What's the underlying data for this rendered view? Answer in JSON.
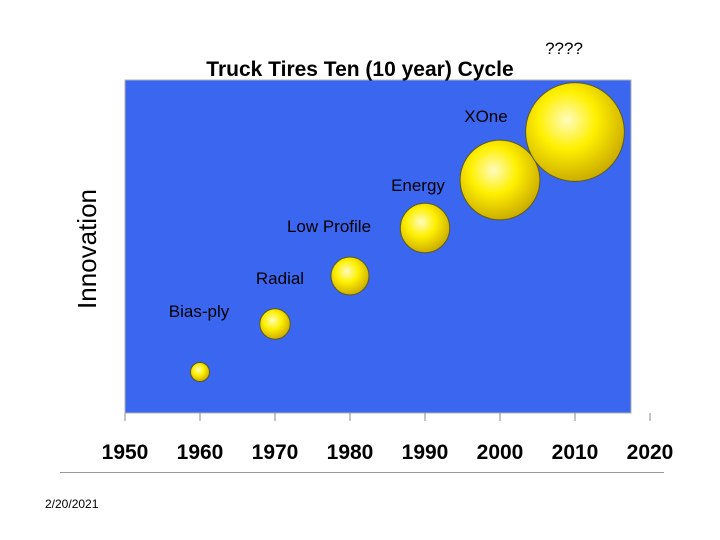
{
  "chart_data": {
    "type": "scatter",
    "title": "Truck Tires Ten (10 year) Cycle",
    "ylabel": "Innovation",
    "xlabel": "",
    "xlim": [
      1950,
      2020
    ],
    "x_ticks": [
      "1950",
      "1960",
      "1970",
      "1980",
      "1990",
      "2000",
      "2010",
      "2020"
    ],
    "grid": false,
    "background_color": "#3a66f0",
    "bubble_color": "#f5e800",
    "points": [
      {
        "label": "",
        "x": 1960,
        "innovation": 1,
        "size": 1
      },
      {
        "label": "Bias-ply",
        "x": 1970,
        "innovation": 2,
        "size": 1.6
      },
      {
        "label": "Radial",
        "x": 1980,
        "innovation": 3,
        "size": 2.0
      },
      {
        "label": "Low Profile",
        "x": 1990,
        "innovation": 4,
        "size": 2.6
      },
      {
        "label": "Energy",
        "x": 2000,
        "innovation": 5,
        "size": 4.2
      },
      {
        "label": "XOne",
        "x": 2010,
        "innovation": 6,
        "size": 5.2
      },
      {
        "label": "????",
        "x": 2010,
        "innovation": 6,
        "size": 0
      }
    ]
  },
  "footer": {
    "date": "2/20/2021"
  }
}
